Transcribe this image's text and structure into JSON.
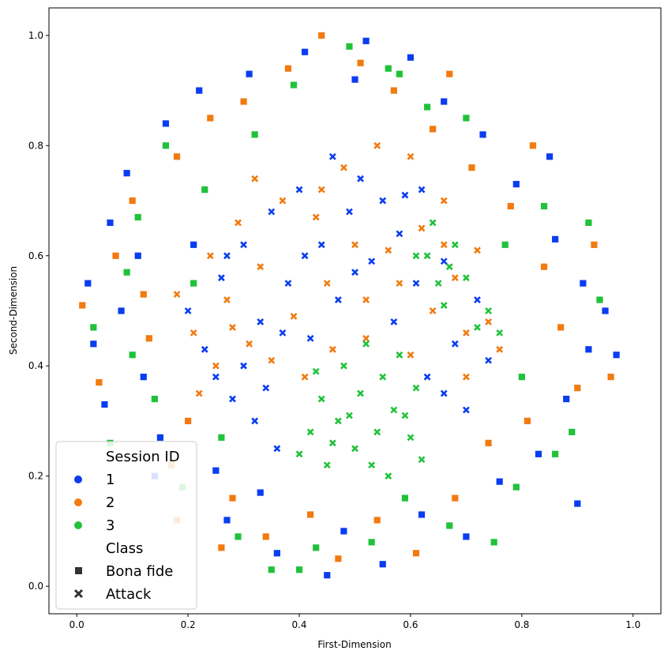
{
  "chart_data": {
    "type": "scatter",
    "title": "",
    "xlabel": "First-Dimension",
    "ylabel": "Second-Dimension",
    "xlim": [
      -0.05,
      1.05
    ],
    "ylim": [
      -0.05,
      1.05
    ],
    "xticks": [
      "0.0",
      "0.2",
      "0.4",
      "0.6",
      "0.8",
      "1.0"
    ],
    "yticks": [
      "0.0",
      "0.2",
      "0.4",
      "0.6",
      "0.8",
      "1.0"
    ],
    "grid": false,
    "legend": {
      "placement": "bottom-left",
      "hue_title": "Session ID",
      "style_title": "Class",
      "hue_entries": [
        {
          "label": "1",
          "color": "#0a3df0"
        },
        {
          "label": "2",
          "color": "#f27a10"
        },
        {
          "label": "3",
          "color": "#20c23a"
        }
      ],
      "style_entries": [
        {
          "label": "Bona fide",
          "marker": "square"
        },
        {
          "label": "Attack",
          "marker": "x"
        }
      ]
    },
    "series": [
      {
        "session": "1",
        "class": "Bona fide",
        "points": [
          [
            0.02,
            0.55
          ],
          [
            0.03,
            0.44
          ],
          [
            0.05,
            0.33
          ],
          [
            0.06,
            0.66
          ],
          [
            0.09,
            0.75
          ],
          [
            0.12,
            0.38
          ],
          [
            0.15,
            0.27
          ],
          [
            0.16,
            0.84
          ],
          [
            0.21,
            0.62
          ],
          [
            0.22,
            0.9
          ],
          [
            0.25,
            0.21
          ],
          [
            0.27,
            0.12
          ],
          [
            0.31,
            0.93
          ],
          [
            0.33,
            0.17
          ],
          [
            0.36,
            0.06
          ],
          [
            0.41,
            0.97
          ],
          [
            0.45,
            0.02
          ],
          [
            0.48,
            0.1
          ],
          [
            0.52,
            0.99
          ],
          [
            0.55,
            0.04
          ],
          [
            0.6,
            0.96
          ],
          [
            0.62,
            0.13
          ],
          [
            0.66,
            0.88
          ],
          [
            0.7,
            0.09
          ],
          [
            0.73,
            0.82
          ],
          [
            0.76,
            0.19
          ],
          [
            0.79,
            0.73
          ],
          [
            0.83,
            0.24
          ],
          [
            0.86,
            0.63
          ],
          [
            0.88,
            0.34
          ],
          [
            0.91,
            0.55
          ],
          [
            0.92,
            0.43
          ],
          [
            0.95,
            0.5
          ],
          [
            0.97,
            0.42
          ],
          [
            0.9,
            0.15
          ],
          [
            0.85,
            0.78
          ],
          [
            0.14,
            0.2
          ],
          [
            0.08,
            0.5
          ],
          [
            0.11,
            0.6
          ],
          [
            0.5,
            0.92
          ]
        ]
      },
      {
        "session": "2",
        "class": "Bona fide",
        "points": [
          [
            0.01,
            0.51
          ],
          [
            0.04,
            0.37
          ],
          [
            0.07,
            0.6
          ],
          [
            0.1,
            0.7
          ],
          [
            0.13,
            0.45
          ],
          [
            0.17,
            0.22
          ],
          [
            0.18,
            0.78
          ],
          [
            0.2,
            0.3
          ],
          [
            0.24,
            0.85
          ],
          [
            0.28,
            0.16
          ],
          [
            0.3,
            0.88
          ],
          [
            0.34,
            0.09
          ],
          [
            0.38,
            0.94
          ],
          [
            0.42,
            0.13
          ],
          [
            0.44,
            1.0
          ],
          [
            0.47,
            0.05
          ],
          [
            0.51,
            0.95
          ],
          [
            0.54,
            0.12
          ],
          [
            0.57,
            0.9
          ],
          [
            0.61,
            0.06
          ],
          [
            0.64,
            0.83
          ],
          [
            0.68,
            0.16
          ],
          [
            0.71,
            0.76
          ],
          [
            0.74,
            0.26
          ],
          [
            0.78,
            0.69
          ],
          [
            0.81,
            0.3
          ],
          [
            0.84,
            0.58
          ],
          [
            0.87,
            0.47
          ],
          [
            0.9,
            0.36
          ],
          [
            0.93,
            0.62
          ],
          [
            0.96,
            0.38
          ],
          [
            0.82,
            0.8
          ],
          [
            0.18,
            0.12
          ],
          [
            0.12,
            0.53
          ],
          [
            0.26,
            0.07
          ],
          [
            0.67,
            0.93
          ]
        ]
      },
      {
        "session": "3",
        "class": "Bona fide",
        "points": [
          [
            0.03,
            0.47
          ],
          [
            0.06,
            0.26
          ],
          [
            0.09,
            0.57
          ],
          [
            0.11,
            0.67
          ],
          [
            0.14,
            0.34
          ],
          [
            0.16,
            0.8
          ],
          [
            0.19,
            0.18
          ],
          [
            0.23,
            0.72
          ],
          [
            0.26,
            0.27
          ],
          [
            0.29,
            0.09
          ],
          [
            0.32,
            0.82
          ],
          [
            0.35,
            0.03
          ],
          [
            0.39,
            0.91
          ],
          [
            0.43,
            0.07
          ],
          [
            0.49,
            0.98
          ],
          [
            0.53,
            0.08
          ],
          [
            0.56,
            0.94
          ],
          [
            0.59,
            0.16
          ],
          [
            0.63,
            0.87
          ],
          [
            0.67,
            0.11
          ],
          [
            0.7,
            0.85
          ],
          [
            0.75,
            0.08
          ],
          [
            0.77,
            0.62
          ],
          [
            0.8,
            0.38
          ],
          [
            0.84,
            0.69
          ],
          [
            0.89,
            0.28
          ],
          [
            0.92,
            0.66
          ],
          [
            0.94,
            0.52
          ],
          [
            0.79,
            0.18
          ],
          [
            0.86,
            0.24
          ],
          [
            0.1,
            0.42
          ],
          [
            0.21,
            0.55
          ],
          [
            0.58,
            0.93
          ],
          [
            0.4,
            0.03
          ]
        ]
      },
      {
        "session": "1",
        "class": "Attack",
        "points": [
          [
            0.2,
            0.5
          ],
          [
            0.23,
            0.43
          ],
          [
            0.26,
            0.56
          ],
          [
            0.28,
            0.34
          ],
          [
            0.3,
            0.62
          ],
          [
            0.32,
            0.3
          ],
          [
            0.33,
            0.48
          ],
          [
            0.35,
            0.68
          ],
          [
            0.36,
            0.25
          ],
          [
            0.38,
            0.55
          ],
          [
            0.4,
            0.72
          ],
          [
            0.42,
            0.45
          ],
          [
            0.44,
            0.62
          ],
          [
            0.46,
            0.78
          ],
          [
            0.47,
            0.52
          ],
          [
            0.49,
            0.68
          ],
          [
            0.51,
            0.74
          ],
          [
            0.53,
            0.59
          ],
          [
            0.55,
            0.7
          ],
          [
            0.57,
            0.48
          ],
          [
            0.59,
            0.71
          ],
          [
            0.61,
            0.55
          ],
          [
            0.63,
            0.38
          ],
          [
            0.66,
            0.59
          ],
          [
            0.68,
            0.44
          ],
          [
            0.7,
            0.32
          ],
          [
            0.72,
            0.52
          ],
          [
            0.74,
            0.41
          ],
          [
            0.3,
            0.4
          ],
          [
            0.27,
            0.6
          ],
          [
            0.5,
            0.57
          ],
          [
            0.58,
            0.64
          ],
          [
            0.34,
            0.36
          ],
          [
            0.62,
            0.72
          ],
          [
            0.66,
            0.35
          ],
          [
            0.41,
            0.6
          ],
          [
            0.25,
            0.38
          ],
          [
            0.37,
            0.46
          ]
        ]
      },
      {
        "session": "2",
        "class": "Attack",
        "points": [
          [
            0.18,
            0.53
          ],
          [
            0.21,
            0.46
          ],
          [
            0.24,
            0.6
          ],
          [
            0.25,
            0.4
          ],
          [
            0.27,
            0.52
          ],
          [
            0.29,
            0.66
          ],
          [
            0.31,
            0.44
          ],
          [
            0.33,
            0.58
          ],
          [
            0.35,
            0.41
          ],
          [
            0.37,
            0.7
          ],
          [
            0.39,
            0.49
          ],
          [
            0.41,
            0.38
          ],
          [
            0.43,
            0.67
          ],
          [
            0.45,
            0.55
          ],
          [
            0.46,
            0.43
          ],
          [
            0.48,
            0.76
          ],
          [
            0.5,
            0.62
          ],
          [
            0.52,
            0.52
          ],
          [
            0.54,
            0.8
          ],
          [
            0.56,
            0.61
          ],
          [
            0.58,
            0.55
          ],
          [
            0.6,
            0.42
          ],
          [
            0.62,
            0.65
          ],
          [
            0.64,
            0.5
          ],
          [
            0.66,
            0.7
          ],
          [
            0.68,
            0.56
          ],
          [
            0.7,
            0.46
          ],
          [
            0.72,
            0.61
          ],
          [
            0.74,
            0.48
          ],
          [
            0.76,
            0.43
          ],
          [
            0.22,
            0.35
          ],
          [
            0.32,
            0.74
          ],
          [
            0.44,
            0.72
          ],
          [
            0.6,
            0.78
          ],
          [
            0.7,
            0.38
          ],
          [
            0.28,
            0.47
          ],
          [
            0.52,
            0.45
          ],
          [
            0.66,
            0.62
          ]
        ]
      },
      {
        "session": "3",
        "class": "Attack",
        "points": [
          [
            0.42,
            0.28
          ],
          [
            0.44,
            0.34
          ],
          [
            0.45,
            0.22
          ],
          [
            0.47,
            0.3
          ],
          [
            0.48,
            0.4
          ],
          [
            0.5,
            0.25
          ],
          [
            0.51,
            0.35
          ],
          [
            0.52,
            0.44
          ],
          [
            0.54,
            0.28
          ],
          [
            0.55,
            0.38
          ],
          [
            0.56,
            0.2
          ],
          [
            0.57,
            0.32
          ],
          [
            0.58,
            0.42
          ],
          [
            0.6,
            0.27
          ],
          [
            0.61,
            0.36
          ],
          [
            0.62,
            0.23
          ],
          [
            0.63,
            0.6
          ],
          [
            0.64,
            0.66
          ],
          [
            0.65,
            0.55
          ],
          [
            0.66,
            0.51
          ],
          [
            0.68,
            0.62
          ],
          [
            0.7,
            0.56
          ],
          [
            0.72,
            0.47
          ],
          [
            0.74,
            0.5
          ],
          [
            0.76,
            0.46
          ],
          [
            0.4,
            0.24
          ],
          [
            0.46,
            0.26
          ],
          [
            0.53,
            0.22
          ],
          [
            0.59,
            0.31
          ],
          [
            0.49,
            0.31
          ],
          [
            0.43,
            0.39
          ],
          [
            0.61,
            0.6
          ],
          [
            0.67,
            0.58
          ]
        ]
      }
    ]
  }
}
